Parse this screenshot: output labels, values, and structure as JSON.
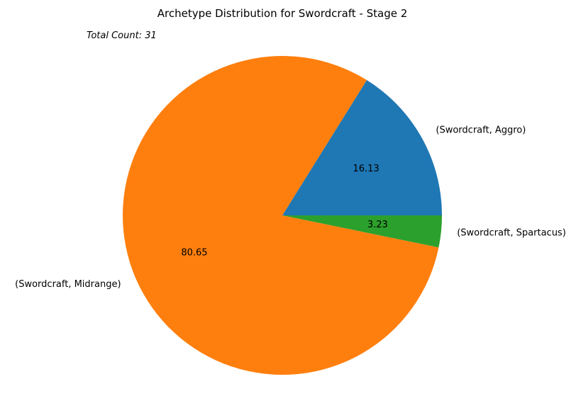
{
  "chart_data": {
    "type": "pie",
    "title": "Archetype Distribution for Swordcraft - Stage 2",
    "annotation": "Total Count: 31",
    "start_angle_deg": 0,
    "direction": "counterclockwise",
    "slices": [
      {
        "label": "(Swordcraft, Aggro)",
        "value": 5,
        "pct_label": "16.13",
        "color": "#1f77b4"
      },
      {
        "label": "(Swordcraft, Midrange)",
        "value": 25,
        "pct_label": "80.65",
        "color": "#ff7f0e"
      },
      {
        "label": "(Swordcraft, Spartacus)",
        "value": 1,
        "pct_label": "3.23",
        "color": "#2ca02c"
      }
    ]
  }
}
